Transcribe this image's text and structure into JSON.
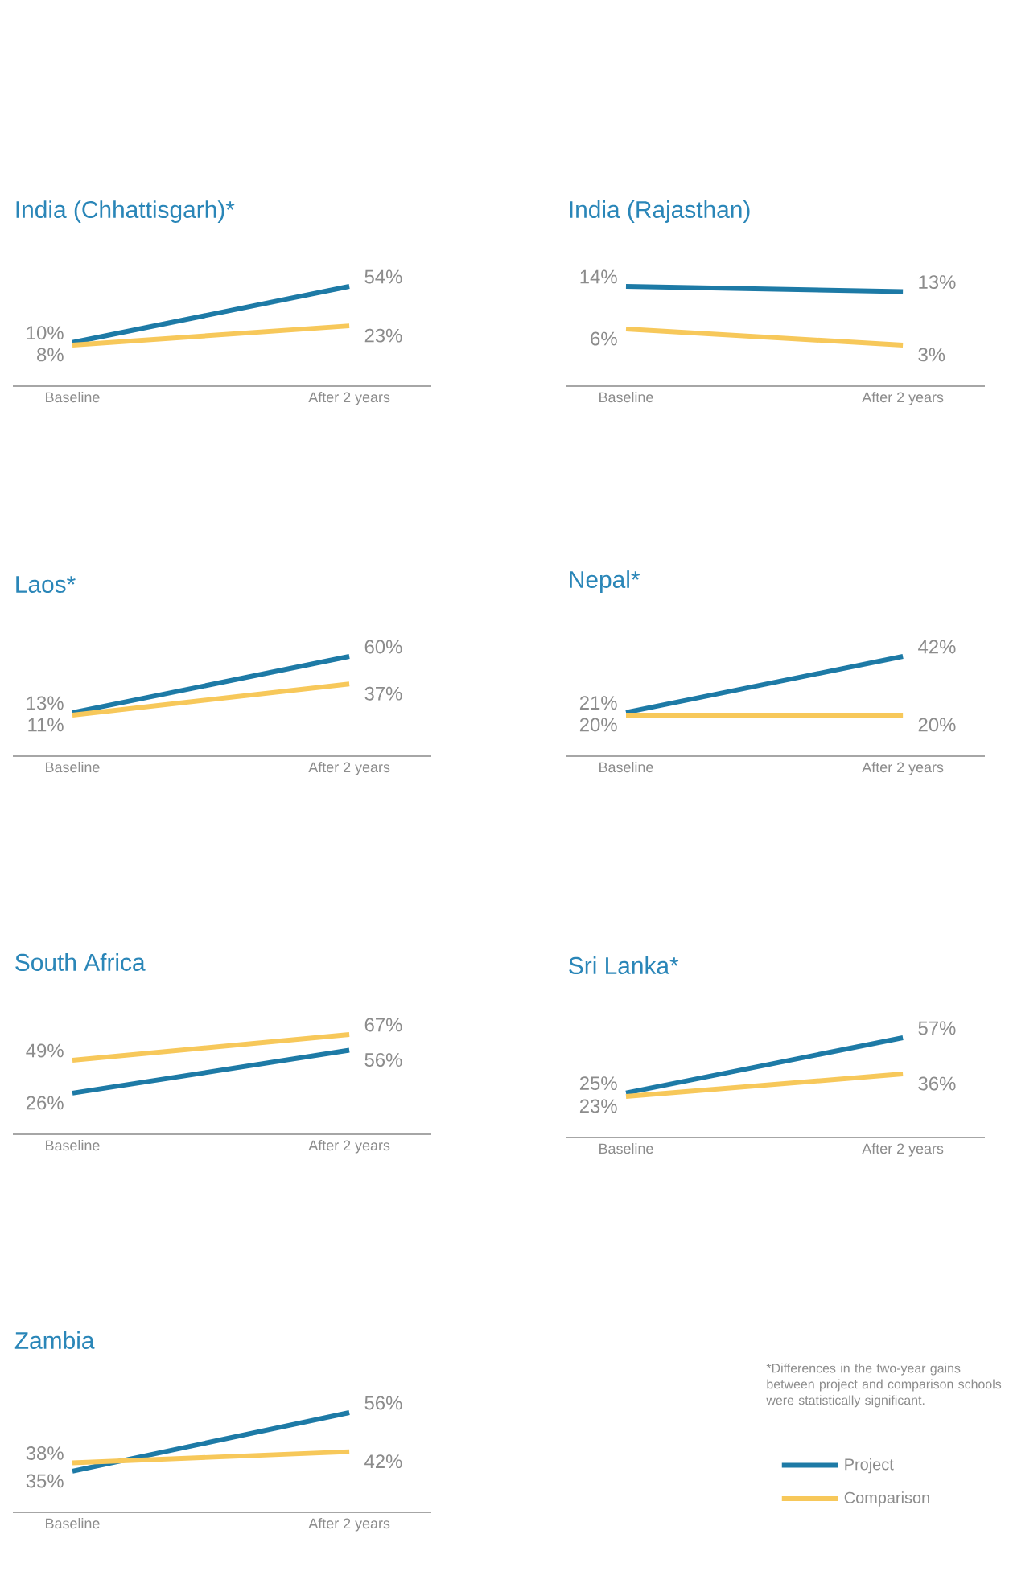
{
  "chart_data": [
    {
      "type": "line",
      "title": "India (Chhattisgarh)*",
      "categories": [
        "Baseline",
        "After 2 years"
      ],
      "legend": false,
      "series": [
        {
          "color": "#1d7aa6",
          "values": [
            10,
            54
          ],
          "value_labels": [
            "10%",
            "54%"
          ]
        },
        {
          "color": "#f7c85a",
          "values": [
            8,
            23
          ],
          "value_labels": [
            "8%",
            "23%"
          ]
        }
      ]
    },
    {
      "type": "line",
      "title": "India (Rajasthan)",
      "categories": [
        "Baseline",
        "After 2 years"
      ],
      "legend": false,
      "series": [
        {
          "color": "#1d7aa6",
          "values": [
            14,
            13
          ],
          "value_labels": [
            "14%",
            "13%"
          ]
        },
        {
          "color": "#f7c85a",
          "values": [
            6,
            3
          ],
          "value_labels": [
            "6%",
            "3%"
          ]
        }
      ]
    },
    {
      "type": "line",
      "title": "Laos*",
      "categories": [
        "Baseline",
        "After 2 years"
      ],
      "legend": false,
      "series": [
        {
          "color": "#1d7aa6",
          "values": [
            13,
            60
          ],
          "value_labels": [
            "13%",
            "60%"
          ]
        },
        {
          "color": "#f7c85a",
          "values": [
            11,
            37
          ],
          "value_labels": [
            "11%",
            "37%"
          ]
        }
      ]
    },
    {
      "type": "line",
      "title": "Nepal*",
      "categories": [
        "Baseline",
        "After 2 years"
      ],
      "legend": false,
      "series": [
        {
          "color": "#1d7aa6",
          "values": [
            21,
            42
          ],
          "value_labels": [
            "21%",
            "42%"
          ]
        },
        {
          "color": "#f7c85a",
          "values": [
            20,
            20
          ],
          "value_labels": [
            "20%",
            "20%"
          ]
        }
      ]
    },
    {
      "type": "line",
      "title": "South Africa",
      "categories": [
        "Baseline",
        "After 2 years"
      ],
      "legend": false,
      "series": [
        {
          "color": "#1d7aa6",
          "values": [
            26,
            56
          ],
          "value_labels": [
            "26%",
            "56%"
          ]
        },
        {
          "color": "#f7c85a",
          "values": [
            49,
            67
          ],
          "value_labels": [
            "49%",
            "67%"
          ]
        }
      ]
    },
    {
      "type": "line",
      "title": "Sri Lanka*",
      "categories": [
        "Baseline",
        "After 2 years"
      ],
      "legend": false,
      "series": [
        {
          "color": "#1d7aa6",
          "values": [
            25,
            57
          ],
          "value_labels": [
            "25%",
            "57%"
          ]
        },
        {
          "color": "#f7c85a",
          "values": [
            23,
            36
          ],
          "value_labels": [
            "23%",
            "36%"
          ]
        }
      ]
    },
    {
      "type": "line",
      "title": "Zambia",
      "categories": [
        "Baseline",
        "After 2 years"
      ],
      "legend": "right",
      "annotations": [
        "*Differences in the two-year gains between project and comparison schools were statistically significant."
      ],
      "series": [
        {
          "name": "Project",
          "color": "#1d7aa6",
          "values": [
            35,
            56
          ],
          "value_labels": [
            "35%",
            "56%"
          ]
        },
        {
          "name": "Comparison",
          "color": "#f7c85a",
          "values": [
            38,
            42
          ],
          "value_labels": [
            "38%",
            "42%"
          ]
        }
      ]
    }
  ]
}
